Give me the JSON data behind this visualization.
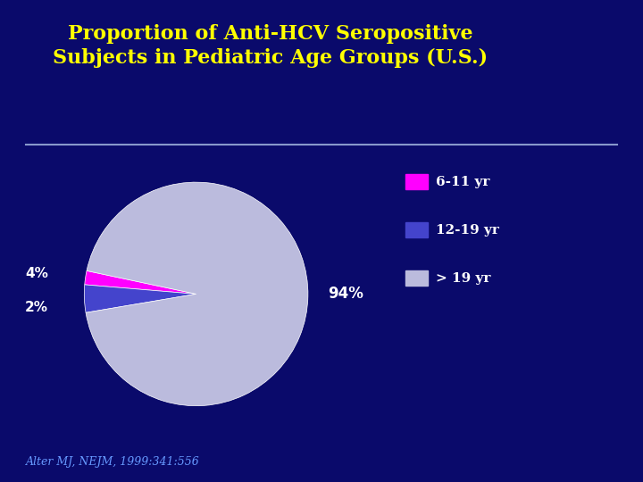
{
  "title": "Proportion of Anti-HCV Seropositive\nSubjects in Pediatric Age Groups (U.S.)",
  "title_color": "#FFFF00",
  "background_color": "#0A0A6B",
  "slices": [
    2,
    4,
    94
  ],
  "labels": [
    "6-11 yr",
    "12-19 yr",
    "> 19 yr"
  ],
  "colors": [
    "#FF00FF",
    "#4444CC",
    "#BBBBDD"
  ],
  "pct_labels": [
    "2%",
    "4%",
    "94%"
  ],
  "legend_labels": [
    "6-11 yr",
    "12-19 yr",
    "> 19 yr"
  ],
  "source_text": "Alter MJ, NEJM, 1999:341:556",
  "source_color": "#6699FF",
  "text_color": "#FFFFFF",
  "line_color": "#8899CC",
  "startangle": 168
}
